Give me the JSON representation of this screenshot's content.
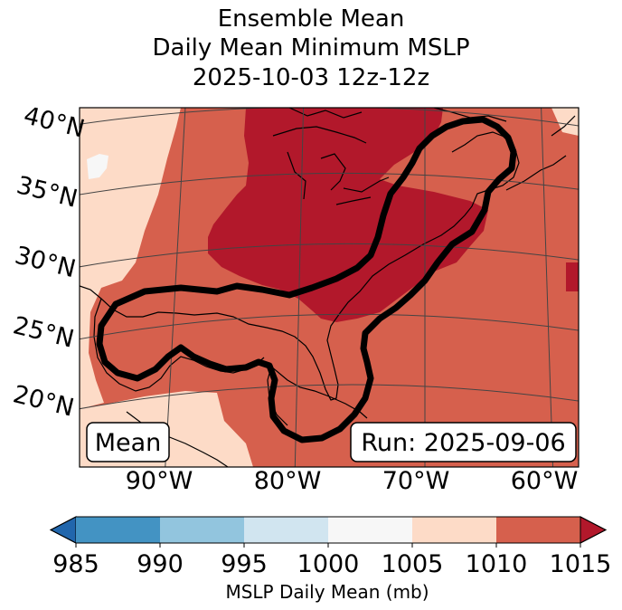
{
  "title": {
    "line1": "Ensemble Mean",
    "line2": "Daily Mean Minimum MSLP",
    "line3": "2025-10-03 12z-12z"
  },
  "map": {
    "lat_labels": [
      "40°N",
      "35°N",
      "30°N",
      "25°N",
      "20°N"
    ],
    "lon_labels": [
      "90°W",
      "80°W",
      "70°W",
      "60°W"
    ],
    "mean_box": "Mean",
    "run_box": "Run: 2025-09-06",
    "colors": {
      "c1005_1010": "#fddbc7",
      "c1010_1015": "#d6604d",
      "c_over_1015": "#b2182b",
      "c1000_1005": "#f7f7f7"
    }
  },
  "colorbar": {
    "label": "MSLP Daily Mean (mb)",
    "ticks": [
      "985",
      "990",
      "995",
      "1000",
      "1005",
      "1010",
      "1015"
    ],
    "colors": [
      "#4393c3",
      "#92c5de",
      "#d1e5f0",
      "#f7f7f7",
      "#fddbc7",
      "#d6604d"
    ],
    "under_color": "#2166ac",
    "over_color": "#b2182b"
  }
}
